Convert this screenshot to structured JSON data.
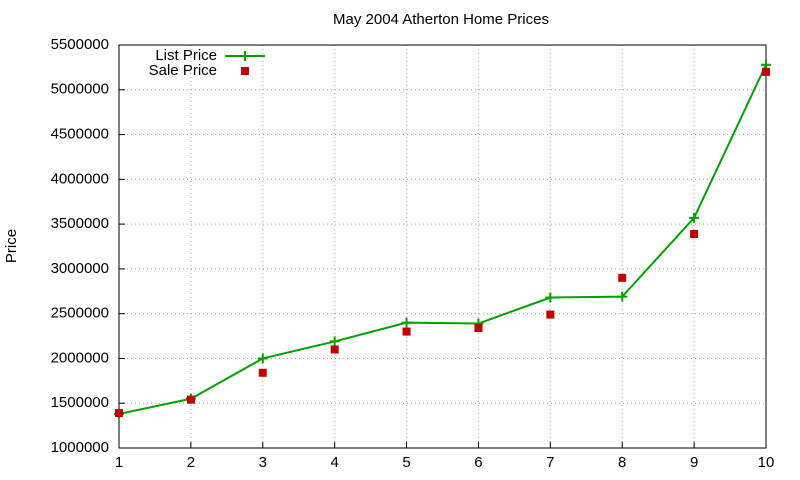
{
  "chart_data": {
    "type": "line",
    "title": "May 2004 Atherton Home Prices",
    "y_label": "Price",
    "x": [
      1,
      2,
      3,
      4,
      5,
      6,
      7,
      8,
      9,
      10
    ],
    "series": [
      {
        "name": "List Price",
        "color": "#00a000",
        "mode": "linespoints",
        "values": [
          1380000,
          1550000,
          2000000,
          2190000,
          2400000,
          2390000,
          2680000,
          2690000,
          3570000,
          5280000
        ]
      },
      {
        "name": "Sale Price",
        "color": "#c00000",
        "mode": "points",
        "values": [
          1390000,
          1540000,
          1840000,
          2100000,
          2300000,
          2340000,
          2490000,
          2900000,
          3390000,
          5200000
        ]
      }
    ],
    "xlim": [
      1,
      10
    ],
    "xticks": [
      1,
      2,
      3,
      4,
      5,
      6,
      7,
      8,
      9,
      10
    ],
    "ylim": [
      1000000,
      5500000
    ],
    "yticks": [
      1000000,
      1500000,
      2000000,
      2500000,
      3000000,
      3500000,
      4000000,
      4500000,
      5000000,
      5500000
    ],
    "grid": true,
    "legend": "top-left"
  }
}
